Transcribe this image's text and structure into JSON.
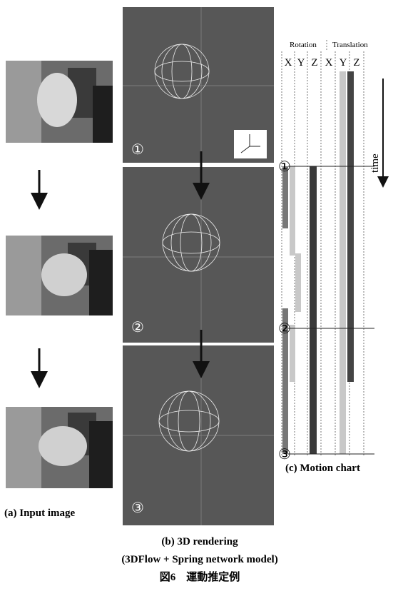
{
  "left": {
    "caption": "(a) Input image"
  },
  "middle": {
    "labels": [
      "①",
      "②",
      "③"
    ],
    "caption": "(b) 3D rendering",
    "subcaption": "(3DFlow + Spring network model)"
  },
  "chart": {
    "rotation": "Rotation",
    "translation": "Translation",
    "axes": [
      "X",
      "Y",
      "Z",
      "X",
      "Y",
      "Z"
    ],
    "markers": [
      "①",
      "②",
      "③"
    ],
    "time": "time",
    "caption": "(c) Motion chart"
  },
  "figure": {
    "caption": "図6　運動推定例"
  }
}
